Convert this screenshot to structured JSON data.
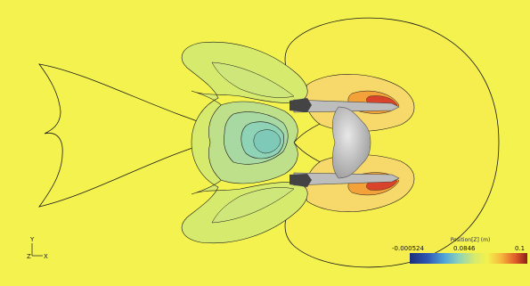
{
  "colors": {
    "background": "#f3f24e",
    "light_green": "#d6ea6d",
    "mid_green": "#bfe08a",
    "green_cyan": "#a8d9a2",
    "cyan": "#8fd3b6",
    "orange_light": "#f7d05a",
    "orange": "#f3a23a",
    "red": "#d9432c",
    "dark_red": "#8a1f18",
    "contour_line": "#1a1a1a",
    "body_gray": "#c8c8c8"
  },
  "axes_indicator": {
    "y_label": "Y",
    "z_label": "Z",
    "x_label": "X"
  },
  "legend": {
    "title": "Position[Z] (m)",
    "min_label": "-0.000524",
    "mid_label": "0.0846",
    "max_label": "0.1",
    "stops": [
      "#1b2f7a",
      "#2d57b3",
      "#52a7d8",
      "#8fd3b6",
      "#d6ea6d",
      "#f3f24e",
      "#f6b53c",
      "#e05a2a",
      "#8a1f18"
    ]
  }
}
